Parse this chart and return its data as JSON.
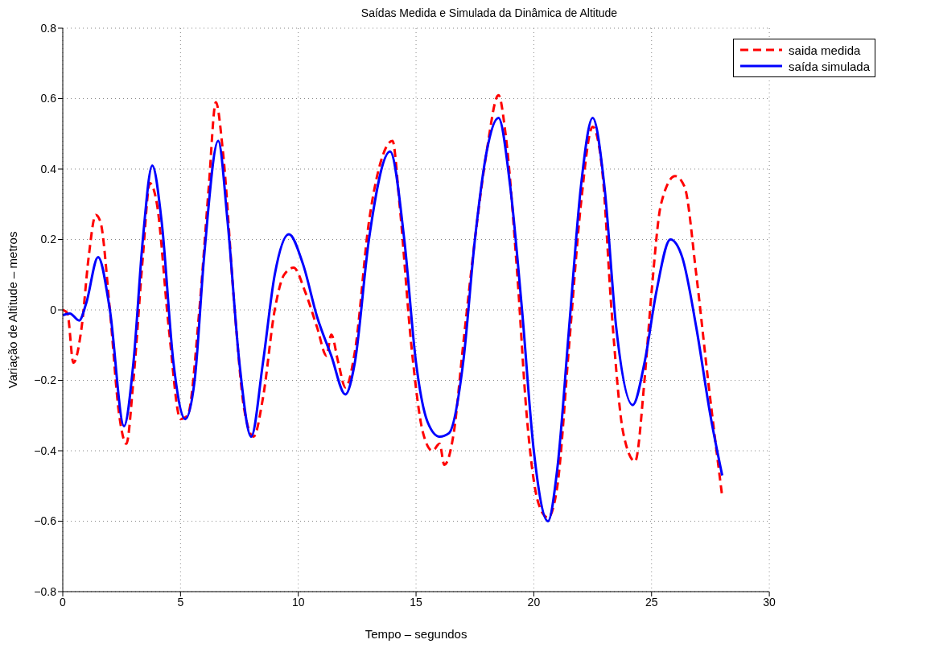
{
  "chart_data": {
    "type": "line",
    "title": "Saídas Medida e Simulada da Dinâmica de Altitude",
    "xlabel": "Tempo – segundos",
    "ylabel": "Variação de Altitude – metros",
    "xlim": [
      0,
      30
    ],
    "xticks": [
      0,
      5,
      10,
      15,
      20,
      25,
      30
    ],
    "ylim": [
      -0.8,
      0.8
    ],
    "yticks": [
      -0.8,
      -0.6,
      -0.4,
      -0.2,
      0,
      0.2,
      0.4,
      0.6,
      0.8
    ],
    "grid": true,
    "legend": "top right",
    "marker": "none",
    "series": [
      {
        "name": "saida medida",
        "color": "#ff0000",
        "line_style": "dashed",
        "x": [
          0,
          0.2,
          0.45,
          0.8,
          1.1,
          1.4,
          1.6,
          2.0,
          2.4,
          2.7,
          3.0,
          3.4,
          3.7,
          4.0,
          4.5,
          5.0,
          5.3,
          5.8,
          6.2,
          6.5,
          6.8,
          7.3,
          7.7,
          8.1,
          8.5,
          9.0,
          9.4,
          9.8,
          10.3,
          10.8,
          11.2,
          11.4,
          11.7,
          12.0,
          12.4,
          13.0,
          13.5,
          14.0,
          14.3,
          14.8,
          15.3,
          15.7,
          16.0,
          16.2,
          16.6,
          17.0,
          17.5,
          18.0,
          18.5,
          18.8,
          19.3,
          19.7,
          20.2,
          20.6,
          21.0,
          21.5,
          22.0,
          22.5,
          22.9,
          23.3,
          23.8,
          24.3,
          24.7,
          25.0,
          25.4,
          26.0,
          26.4,
          26.9,
          27.4,
          28.0
        ],
        "values": [
          0,
          -0.01,
          -0.15,
          -0.05,
          0.15,
          0.27,
          0.25,
          0,
          -0.3,
          -0.38,
          -0.2,
          0.15,
          0.36,
          0.3,
          -0.05,
          -0.31,
          -0.3,
          0,
          0.35,
          0.59,
          0.45,
          0,
          -0.28,
          -0.36,
          -0.25,
          0,
          0.1,
          0.12,
          0.05,
          -0.05,
          -0.13,
          -0.07,
          -0.15,
          -0.22,
          -0.12,
          0.25,
          0.42,
          0.48,
          0.3,
          -0.1,
          -0.35,
          -0.4,
          -0.38,
          -0.44,
          -0.35,
          -0.1,
          0.2,
          0.45,
          0.61,
          0.5,
          0.1,
          -0.3,
          -0.55,
          -0.59,
          -0.5,
          -0.1,
          0.3,
          0.52,
          0.4,
          0,
          -0.35,
          -0.43,
          -0.2,
          0.05,
          0.3,
          0.38,
          0.35,
          0.1,
          -0.2,
          -0.53
        ]
      },
      {
        "name": "saída simulada",
        "color": "#0000ff",
        "line_style": "solid",
        "x": [
          0,
          0.3,
          0.7,
          1.0,
          1.5,
          2.0,
          2.6,
          3.0,
          3.4,
          3.8,
          4.2,
          4.7,
          5.2,
          5.6,
          6.0,
          6.6,
          7.0,
          7.5,
          8.0,
          8.5,
          9.0,
          9.6,
          10.2,
          10.8,
          11.4,
          12.0,
          12.4,
          13.0,
          13.9,
          14.5,
          15.0,
          15.5,
          16.0,
          16.4,
          17.0,
          17.5,
          18.0,
          18.5,
          19.0,
          19.5,
          20.0,
          20.6,
          21.0,
          21.5,
          22.0,
          22.5,
          23.0,
          23.5,
          24.2,
          24.7,
          25.2,
          25.8,
          26.3,
          26.9,
          27.5,
          28.0
        ],
        "values": [
          -0.015,
          -0.01,
          -0.03,
          0.02,
          0.15,
          0,
          -0.33,
          -0.15,
          0.2,
          0.41,
          0.25,
          -0.15,
          -0.31,
          -0.2,
          0.15,
          0.48,
          0.25,
          -0.15,
          -0.36,
          -0.15,
          0.1,
          0.215,
          0.13,
          -0.02,
          -0.13,
          -0.24,
          -0.15,
          0.2,
          0.45,
          0.2,
          -0.15,
          -0.32,
          -0.36,
          -0.35,
          -0.15,
          0.2,
          0.45,
          0.545,
          0.35,
          0,
          -0.4,
          -0.6,
          -0.45,
          -0.05,
          0.35,
          0.545,
          0.35,
          -0.05,
          -0.27,
          -0.15,
          0.05,
          0.2,
          0.15,
          -0.05,
          -0.3,
          -0.47
        ]
      }
    ]
  }
}
